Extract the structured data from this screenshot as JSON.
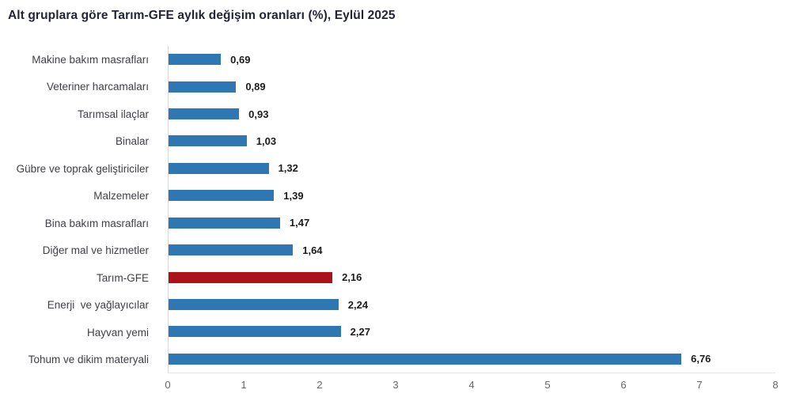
{
  "chart_data": {
    "type": "bar",
    "orientation": "horizontal",
    "title": "Alt gruplara göre Tarım-GFE aylık değişim oranları (%), Eylül 2025",
    "categories": [
      "Makine bakım masrafları",
      "Veteriner harcamaları",
      "Tarımsal ilaçlar",
      "Binalar",
      "Gübre ve toprak geliştiriciler",
      "Malzemeler",
      "Bina bakım masrafları",
      "Diğer mal ve hizmetler",
      "Tarım-GFE",
      "Enerji  ve yağlayıcılar",
      "Hayvan yemi",
      "Tohum ve dikim materyali"
    ],
    "values": [
      0.69,
      0.89,
      0.93,
      1.03,
      1.32,
      1.39,
      1.47,
      1.64,
      2.16,
      2.24,
      2.27,
      6.76
    ],
    "display_values": [
      "0,69",
      "0,89",
      "0,93",
      "1,03",
      "1,32",
      "1,39",
      "1,47",
      "1,64",
      "2,16",
      "2,24",
      "2,27",
      "6,76"
    ],
    "highlight_category": "Tarım-GFE",
    "highlight_index": 8,
    "bar_color": "#2E77B3",
    "highlight_color": "#AD121A",
    "value_label_color": "#1c1c1c",
    "xlim": [
      0,
      8
    ],
    "x_ticks": [
      0,
      1,
      2,
      3,
      4,
      5,
      6,
      7,
      8
    ],
    "grid": false,
    "value_labels": true,
    "legend": "none"
  }
}
